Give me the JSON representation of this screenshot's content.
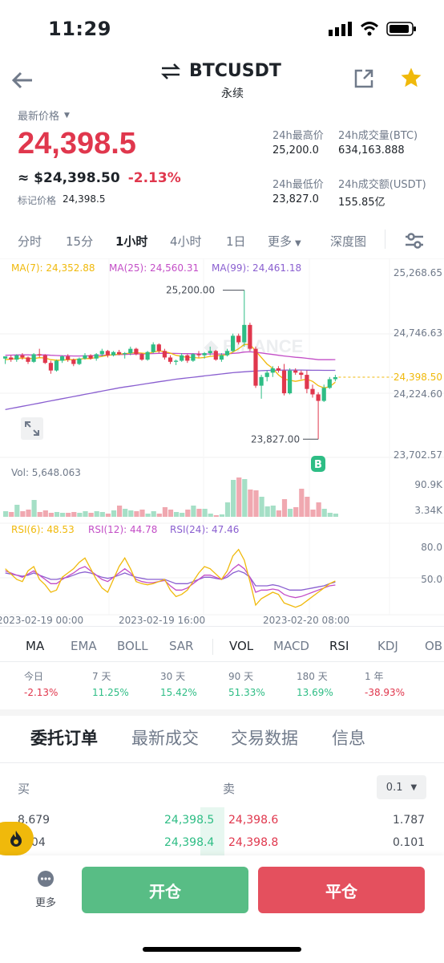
{
  "status_bar": {
    "time": "11:29"
  },
  "header": {
    "symbol": "BTCUSDT",
    "contract_type": "永续"
  },
  "price": {
    "label": "最新价格",
    "last": "24,398.5",
    "usd_equiv": "≈ $24,398.50",
    "change": "-2.13%",
    "mark_label": "标记价格",
    "mark_value": "24,398.5"
  },
  "stats": {
    "high_label": "24h最高价",
    "high": "25,200.0",
    "vol_btc_label": "24h成交量(BTC)",
    "vol_btc": "634,163.888",
    "low_label": "24h最低价",
    "low": "23,827.0",
    "vol_usdt_label": "24h成交额(USDT)",
    "vol_usdt": "155.85亿"
  },
  "intervals": [
    "分时",
    "15分",
    "1小时",
    "4小时",
    "1日",
    "更多",
    "深度图"
  ],
  "active_interval": "1小时",
  "chart_legend": {
    "ma7": "MA(7): 24,352.88",
    "ma25": "MA(25): 24,560.31",
    "ma99": "MA(99): 24,461.18",
    "vol": "Vol: 5,648.063",
    "rsi6": "RSI(6): 48.53",
    "rsi12": "RSI(12): 44.78",
    "rsi24": "RSI(24): 47.46"
  },
  "chart_data": {
    "type": "candlestick",
    "price_axis_ticks": [
      "25,268.65",
      "24,746.63",
      "24,224.60",
      "23,702.57"
    ],
    "current_price_tag": "24,398.50",
    "high_annotation": "25,200.00",
    "low_annotation": "23,827.00",
    "buy_marker": "B",
    "volume_axis_ticks": [
      "90.9K",
      "3.34K"
    ],
    "rsi_axis_ticks": [
      "80.0",
      "50.0"
    ],
    "time_ticks": [
      "2023-02-19 00:00",
      "2023-02-19 16:00",
      "2023-02-20 08:00"
    ],
    "ylim": [
      23600,
      25330
    ],
    "candles": [
      [
        24570,
        24580,
        24520,
        24590
      ],
      [
        24580,
        24600,
        24540,
        24560
      ],
      [
        24560,
        24610,
        24540,
        24600
      ],
      [
        24600,
        24620,
        24560,
        24580
      ],
      [
        24580,
        24590,
        24520,
        24540
      ],
      [
        24540,
        24620,
        24530,
        24610
      ],
      [
        24610,
        24660,
        24580,
        24600
      ],
      [
        24600,
        24610,
        24520,
        24530
      ],
      [
        24530,
        24550,
        24430,
        24460
      ],
      [
        24460,
        24560,
        24450,
        24550
      ],
      [
        24550,
        24600,
        24530,
        24590
      ],
      [
        24590,
        24610,
        24540,
        24560
      ],
      [
        24560,
        24570,
        24500,
        24520
      ],
      [
        24520,
        24580,
        24510,
        24570
      ],
      [
        24570,
        24620,
        24560,
        24600
      ],
      [
        24600,
        24610,
        24560,
        24570
      ],
      [
        24570,
        24620,
        24550,
        24610
      ],
      [
        24610,
        24660,
        24590,
        24640
      ],
      [
        24640,
        24650,
        24580,
        24600
      ],
      [
        24600,
        24640,
        24590,
        24630
      ],
      [
        24630,
        24650,
        24600,
        24610
      ],
      [
        24610,
        24630,
        24570,
        24620
      ],
      [
        24620,
        24680,
        24600,
        24660
      ],
      [
        24660,
        24670,
        24600,
        24610
      ],
      [
        24610,
        24620,
        24550,
        24560
      ],
      [
        24560,
        24640,
        24550,
        24630
      ],
      [
        24630,
        24720,
        24620,
        24700
      ],
      [
        24700,
        24710,
        24620,
        24640
      ],
      [
        24640,
        24660,
        24560,
        24580
      ],
      [
        24580,
        24600,
        24520,
        24540
      ],
      [
        24540,
        24560,
        24510,
        24550
      ],
      [
        24550,
        24620,
        24540,
        24600
      ],
      [
        24600,
        24610,
        24530,
        24550
      ],
      [
        24550,
        24620,
        24540,
        24610
      ],
      [
        24610,
        24640,
        24580,
        24600
      ],
      [
        24600,
        24630,
        24570,
        24620
      ],
      [
        24620,
        24680,
        24600,
        24640
      ],
      [
        24640,
        24650,
        24550,
        24560
      ],
      [
        24560,
        24620,
        24540,
        24600
      ],
      [
        24600,
        24660,
        24590,
        24640
      ],
      [
        24640,
        24800,
        24630,
        24780
      ],
      [
        24780,
        24800,
        24700,
        24720
      ],
      [
        24720,
        25200,
        24680,
        24880
      ],
      [
        24880,
        24900,
        24640,
        24660
      ],
      [
        24660,
        24680,
        24300,
        24320
      ],
      [
        24320,
        24420,
        24200,
        24400
      ],
      [
        24400,
        24460,
        24360,
        24440
      ],
      [
        24440,
        24500,
        24400,
        24480
      ],
      [
        24480,
        24500,
        24440,
        24460
      ],
      [
        24460,
        24520,
        24230,
        24250
      ],
      [
        24250,
        24480,
        24240,
        24460
      ],
      [
        24460,
        24480,
        24420,
        24440
      ],
      [
        24440,
        24460,
        24380,
        24420
      ],
      [
        24420,
        24460,
        24250,
        24290
      ],
      [
        24290,
        24330,
        24210,
        24240
      ],
      [
        24240,
        24260,
        23827,
        24180
      ],
      [
        24180,
        24330,
        24170,
        24300
      ],
      [
        24300,
        24400,
        24290,
        24380
      ],
      [
        24380,
        24420,
        24360,
        24398.5
      ]
    ],
    "ma7": [
      24560,
      24565,
      24570,
      24575,
      24572,
      24570,
      24578,
      24575,
      24560,
      24555,
      24555,
      24560,
      24560,
      24565,
      24570,
      24570,
      24580,
      24590,
      24600,
      24605,
      24610,
      24615,
      24620,
      24625,
      24620,
      24615,
      24630,
      24640,
      24635,
      24620,
      24600,
      24590,
      24580,
      24580,
      24575,
      24580,
      24590,
      24595,
      24600,
      24605,
      24630,
      24660,
      24700,
      24700,
      24640,
      24580,
      24520,
      24480,
      24420,
      24380,
      24370,
      24360,
      24370,
      24380,
      24360,
      24320,
      24300,
      24310,
      24352.88
    ],
    "ma25": [
      24600,
      24602,
      24603,
      24605,
      24604,
      24602,
      24603,
      24604,
      24600,
      24598,
      24596,
      24595,
      24594,
      24594,
      24595,
      24596,
      24598,
      24600,
      24602,
      24604,
      24606,
      24608,
      24610,
      24612,
      24613,
      24614,
      24616,
      24618,
      24619,
      24618,
      24617,
      24616,
      24615,
      24614,
      24613,
      24612,
      24612,
      24612,
      24612,
      24613,
      24618,
      24622,
      24630,
      24632,
      24628,
      24622,
      24614,
      24608,
      24600,
      24594,
      24588,
      24582,
      24578,
      24572,
      24566,
      24560,
      24560,
      24560,
      24560.31
    ],
    "ma99": [
      24100,
      24110,
      24120,
      24130,
      24140,
      24150,
      24160,
      24170,
      24180,
      24190,
      24200,
      24210,
      24220,
      24230,
      24240,
      24250,
      24260,
      24270,
      24280,
      24290,
      24300,
      24308,
      24316,
      24324,
      24332,
      24340,
      24348,
      24356,
      24364,
      24372,
      24380,
      24386,
      24392,
      24398,
      24404,
      24410,
      24416,
      24422,
      24428,
      24434,
      24440,
      24444,
      24448,
      24452,
      24455,
      24458,
      24460,
      24462,
      24463,
      24464,
      24464,
      24464,
      24464,
      24463,
      24462,
      24462,
      24461,
      24461,
      24461.18
    ],
    "volume": [
      7,
      6,
      15,
      7,
      9,
      21,
      6,
      8,
      5,
      6,
      5,
      5,
      6,
      5,
      7,
      5,
      7,
      6,
      4,
      8,
      14,
      10,
      8,
      7,
      9,
      4,
      7,
      4,
      12,
      9,
      6,
      5,
      9,
      14,
      10,
      10,
      4,
      2,
      3,
      18,
      46,
      49,
      47,
      34,
      33,
      25,
      13,
      14,
      8,
      22,
      10,
      12,
      35,
      25,
      9,
      18,
      10,
      5,
      4
    ],
    "rsi6": [
      60,
      55,
      50,
      48,
      58,
      62,
      50,
      45,
      38,
      40,
      52,
      56,
      60,
      66,
      70,
      60,
      50,
      42,
      38,
      50,
      62,
      70,
      60,
      48,
      46,
      45,
      46,
      48,
      50,
      40,
      34,
      36,
      40,
      48,
      56,
      62,
      60,
      55,
      50,
      58,
      72,
      78,
      68,
      48,
      26,
      32,
      35,
      38,
      36,
      28,
      26,
      24,
      26,
      30,
      34,
      38,
      42,
      46,
      48.53
    ],
    "rsi12": [
      58,
      56,
      54,
      52,
      55,
      58,
      54,
      50,
      46,
      46,
      50,
      53,
      56,
      60,
      62,
      58,
      54,
      50,
      48,
      52,
      56,
      60,
      56,
      50,
      48,
      47,
      47,
      48,
      49,
      44,
      40,
      40,
      42,
      46,
      50,
      54,
      54,
      52,
      50,
      54,
      60,
      64,
      60,
      52,
      38,
      40,
      40,
      41,
      40,
      36,
      34,
      33,
      34,
      36,
      38,
      40,
      42,
      44,
      44.78
    ],
    "rsi24": [
      56,
      55,
      54,
      53,
      54,
      56,
      54,
      52,
      50,
      50,
      51,
      52,
      54,
      56,
      57,
      56,
      54,
      52,
      51,
      52,
      54,
      56,
      54,
      52,
      51,
      50,
      50,
      50,
      50,
      48,
      46,
      46,
      46,
      48,
      50,
      52,
      52,
      51,
      50,
      52,
      56,
      58,
      56,
      52,
      44,
      44,
      44,
      45,
      44,
      42,
      40,
      40,
      40,
      41,
      42,
      43,
      44,
      46,
      47.46
    ]
  },
  "indicators_main": [
    "MA",
    "EMA",
    "BOLL",
    "SAR"
  ],
  "indicators_sub": [
    "VOL",
    "MACD",
    "RSI",
    "KDJ",
    "OB"
  ],
  "performance": [
    {
      "label": "今日",
      "value": "-2.13%"
    },
    {
      "label": "7 天",
      "value": "11.25%"
    },
    {
      "label": "30 天",
      "value": "15.42%"
    },
    {
      "label": "90 天",
      "value": "51.33%"
    },
    {
      "label": "180 天",
      "value": "13.69%"
    },
    {
      "label": "1 年",
      "value": "-38.93%"
    }
  ],
  "section_tabs": [
    "委托订单",
    "最新成交",
    "交易数据",
    "信息"
  ],
  "orderbook": {
    "buy_label": "买",
    "sell_label": "卖",
    "precision": "0.1",
    "rows": [
      {
        "bid_qty": "8.679",
        "bid_price": "24,398.5",
        "ask_price": "24,398.6",
        "ask_qty": "1.787"
      },
      {
        "bid_qty": "004",
        "bid_price": "24,398.4",
        "ask_price": "24,398.8",
        "ask_qty": "0.101"
      }
    ]
  },
  "bottom_bar": {
    "more_label": "更多",
    "open_label": "开仓",
    "close_label": "平仓"
  },
  "colors": {
    "up": "#2ebd85",
    "down": "#e0374d",
    "accent": "#f0b90b",
    "ma7": "#f0b90b",
    "ma25": "#c34ec7",
    "ma99": "#8a5fd0"
  }
}
